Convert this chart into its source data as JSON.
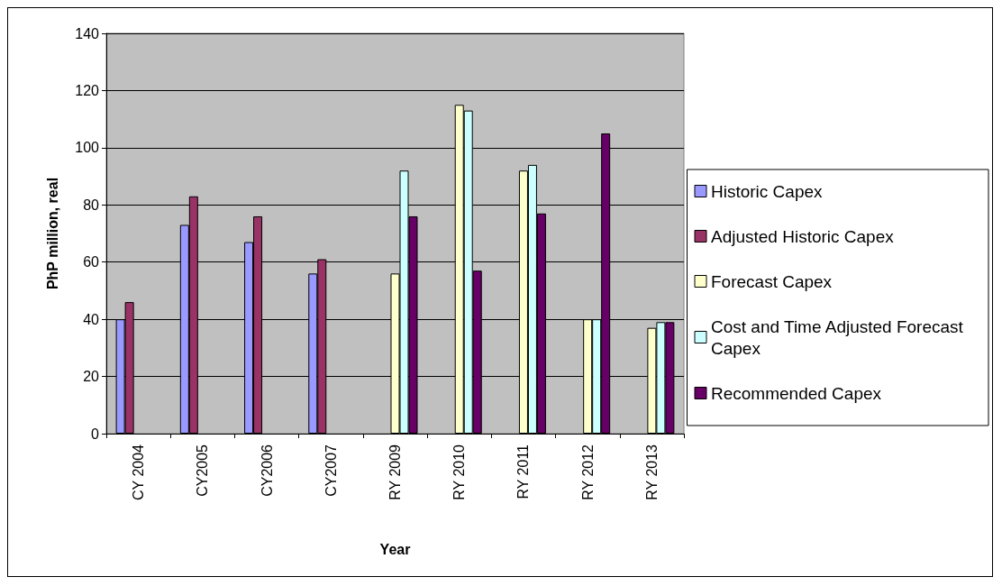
{
  "chart_data": {
    "type": "bar",
    "xlabel": "Year",
    "ylabel": "PhP million, real",
    "categories": [
      "CY 2004",
      "CY2005",
      "CY2006",
      "CY2007",
      "RY 2009",
      "RY 2010",
      "RY 2011",
      "RY 2012",
      "RY 2013"
    ],
    "series": [
      {
        "name": "Historic Capex",
        "color": "#9999ff",
        "values": [
          40,
          73,
          67,
          56,
          null,
          null,
          null,
          null,
          null
        ]
      },
      {
        "name": "Adjusted Historic Capex",
        "color": "#993366",
        "values": [
          46,
          83,
          76,
          61,
          null,
          null,
          null,
          null,
          null
        ]
      },
      {
        "name": "Forecast Capex",
        "color": "#ffffcc",
        "values": [
          null,
          null,
          null,
          null,
          56,
          115,
          92,
          40,
          37
        ]
      },
      {
        "name": "Cost and Time Adjusted Forecast Capex",
        "color": "#ccffff",
        "values": [
          null,
          null,
          null,
          null,
          92,
          113,
          94,
          40,
          39
        ]
      },
      {
        "name": "Recommended Capex",
        "color": "#660066",
        "values": [
          null,
          null,
          null,
          null,
          76,
          57,
          77,
          105,
          39
        ]
      }
    ],
    "ylim": [
      0,
      140
    ],
    "yticks": [
      0,
      20,
      40,
      60,
      80,
      100,
      120,
      140
    ],
    "grid": "y",
    "legend": "right"
  }
}
